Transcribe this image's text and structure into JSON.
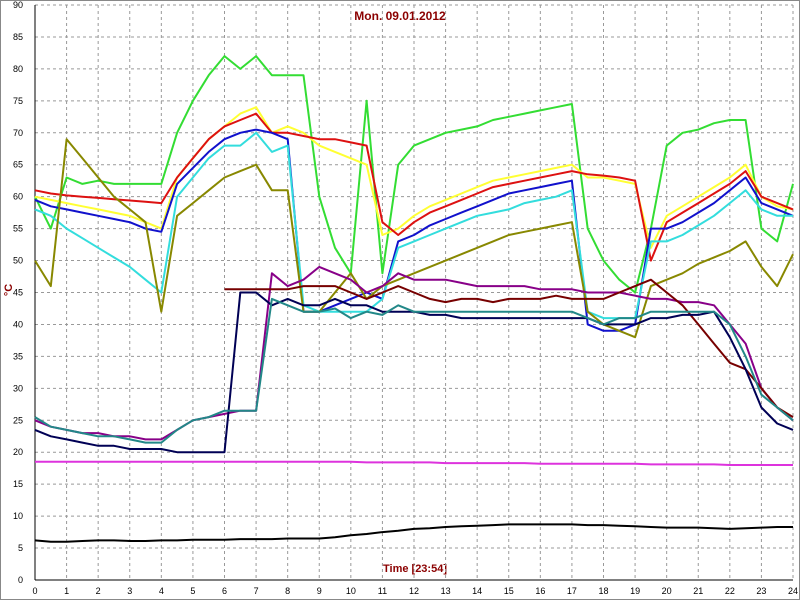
{
  "chart_data": {
    "type": "line",
    "title": "Mon. 09.01.2012",
    "x_label": "Time [23:54]",
    "y_label": "°C",
    "x": [
      0,
      0.5,
      1,
      1.5,
      2,
      2.5,
      3,
      3.5,
      4,
      4.5,
      5,
      5.5,
      6,
      6.5,
      7,
      7.5,
      8,
      8.5,
      9,
      9.5,
      10,
      10.5,
      11,
      11.5,
      12,
      12.5,
      13,
      13.5,
      14,
      14.5,
      15,
      15.5,
      16,
      16.5,
      17,
      17.5,
      18,
      18.5,
      19,
      19.5,
      20,
      20.5,
      21,
      21.5,
      22,
      22.5,
      23,
      23.5,
      24
    ],
    "xlim": [
      0,
      24
    ],
    "xticks": [
      0,
      1,
      2,
      3,
      4,
      5,
      6,
      7,
      8,
      9,
      10,
      11,
      12,
      13,
      14,
      15,
      16,
      17,
      18,
      19,
      20,
      21,
      22,
      23,
      24
    ],
    "ylim": [
      0,
      90
    ],
    "yticks": [
      0,
      5,
      10,
      15,
      20,
      25,
      30,
      35,
      40,
      45,
      50,
      55,
      60,
      65,
      70,
      75,
      80,
      85,
      90
    ],
    "grid": true,
    "series": [
      {
        "color": "#33dd33",
        "values": [
          60,
          55,
          63,
          62,
          62.5,
          62,
          62,
          62,
          62,
          70,
          75,
          79,
          82,
          80,
          82,
          79,
          79,
          79,
          60,
          52,
          48,
          75,
          48,
          65,
          68,
          69,
          70,
          70.5,
          71,
          72,
          72.5,
          73,
          73.5,
          74,
          74.5,
          55,
          50,
          47,
          45,
          55,
          68,
          70,
          70.5,
          71.5,
          72,
          72,
          55,
          53,
          62
        ]
      },
      {
        "color": "#ffff33",
        "values": [
          60,
          59.5,
          59,
          58.5,
          58,
          57.5,
          57,
          56,
          55,
          63,
          66,
          69,
          71,
          73,
          74,
          70,
          71,
          70,
          68,
          67,
          66,
          65,
          54,
          55,
          57,
          58.5,
          59.5,
          60.5,
          61.5,
          62.5,
          63,
          63.5,
          64,
          64.5,
          65,
          63,
          63,
          62.5,
          62,
          52,
          57,
          58.5,
          60,
          61.5,
          63,
          65,
          60,
          58.5,
          58
        ]
      },
      {
        "color": "#dd1111",
        "values": [
          61,
          60.5,
          60.2,
          60,
          59.8,
          59.6,
          59.4,
          59.2,
          59,
          63,
          66,
          69,
          71,
          72,
          73,
          70,
          70,
          69.5,
          69,
          69,
          68.5,
          68,
          56,
          54,
          56,
          57.5,
          58.5,
          59.5,
          60.5,
          61.5,
          62,
          62.5,
          63,
          63.5,
          64,
          63.5,
          63.3,
          63,
          62.5,
          50,
          56,
          57.5,
          59,
          60.5,
          62,
          64,
          60,
          59,
          58
        ]
      },
      {
        "color": "#1111cc",
        "values": [
          59.5,
          58.5,
          58,
          57.5,
          57,
          56.5,
          56,
          55,
          54.5,
          62,
          64.5,
          67,
          69,
          70,
          70.5,
          70,
          69,
          42,
          42,
          43,
          44,
          45,
          44,
          53,
          54,
          55.5,
          56.5,
          57.5,
          58.5,
          59.5,
          60.5,
          61,
          61.5,
          62,
          62.5,
          40,
          39,
          39,
          40,
          55,
          55,
          56,
          57.5,
          59,
          61,
          63,
          59,
          58,
          57
        ]
      },
      {
        "color": "#33dddd",
        "values": [
          58,
          57,
          55,
          53.5,
          52,
          50.5,
          49,
          47,
          45,
          60,
          63,
          66,
          68,
          68,
          70,
          67,
          68,
          43,
          42,
          42,
          42,
          42,
          44,
          52,
          53,
          54,
          55,
          56,
          57,
          57.5,
          58,
          59,
          59.5,
          60,
          61,
          42,
          41,
          41,
          41,
          53,
          53,
          54,
          55.5,
          57,
          59,
          61,
          58,
          57,
          57
        ]
      },
      {
        "color": "#888800",
        "values": [
          50,
          46,
          69,
          66,
          63,
          60,
          58,
          56,
          42,
          57,
          59,
          61,
          63,
          64,
          65,
          61,
          61,
          42,
          42,
          45,
          48,
          44,
          46,
          47,
          48,
          49,
          50,
          51,
          52,
          53,
          54,
          54.5,
          55,
          55.5,
          56,
          42,
          40,
          39,
          38,
          46,
          47,
          48,
          49.5,
          50.5,
          51.5,
          53,
          49,
          46,
          51
        ]
      },
      {
        "color": "#880088",
        "values": [
          25,
          24,
          23.5,
          23,
          23,
          22.5,
          22.5,
          22,
          22,
          23.5,
          25,
          25.5,
          26,
          26.5,
          26.5,
          48,
          46,
          47,
          49,
          48,
          47,
          45,
          46,
          48,
          47,
          47,
          47,
          46.5,
          46,
          46,
          46,
          46,
          45.5,
          45.5,
          45.5,
          45,
          45,
          45,
          44.5,
          44,
          44,
          43.5,
          43.5,
          43,
          40,
          37,
          30,
          27,
          25
        ]
      },
      {
        "color": "#770000",
        "values": [
          null,
          null,
          null,
          null,
          null,
          null,
          null,
          null,
          null,
          null,
          null,
          null,
          45.5,
          45.5,
          45.5,
          45.5,
          45.5,
          46,
          46,
          46,
          45,
          44,
          45,
          46,
          45,
          44,
          43.5,
          44,
          44,
          43.5,
          44,
          44,
          44,
          44.5,
          44,
          44,
          44,
          45,
          46,
          47,
          45,
          43,
          40,
          37,
          34,
          33,
          30,
          27,
          25.5
        ]
      },
      {
        "color": "#000055",
        "values": [
          23.5,
          22.5,
          22,
          21.5,
          21,
          21,
          20.5,
          20.5,
          20.5,
          20,
          20,
          20,
          20,
          45,
          45,
          43,
          44,
          43,
          43,
          44,
          43,
          43,
          42,
          42,
          42,
          41.5,
          41.5,
          41,
          41,
          41,
          41,
          41,
          41,
          41,
          41,
          41,
          40,
          40,
          40,
          41,
          41,
          41.5,
          41.5,
          42,
          38,
          33,
          27,
          24.5,
          23.5
        ]
      },
      {
        "color": "#228888",
        "values": [
          25.5,
          24,
          23.5,
          23,
          22.5,
          22.5,
          22,
          21.5,
          21.5,
          23.5,
          25,
          25.5,
          26.5,
          26.5,
          26.5,
          44,
          43,
          42,
          42,
          42.5,
          41,
          42,
          41.5,
          43,
          42,
          42,
          42,
          42,
          42,
          42,
          42,
          42,
          42,
          42,
          42,
          41,
          40,
          41,
          41,
          42,
          42,
          42,
          42,
          42,
          40,
          35,
          29,
          27,
          25
        ]
      },
      {
        "color": "#dd33dd",
        "values": [
          18.5,
          18.5,
          18.5,
          18.5,
          18.5,
          18.5,
          18.5,
          18.5,
          18.5,
          18.5,
          18.5,
          18.5,
          18.5,
          18.5,
          18.5,
          18.5,
          18.5,
          18.5,
          18.5,
          18.5,
          18.5,
          18.4,
          18.4,
          18.4,
          18.4,
          18.4,
          18.3,
          18.3,
          18.3,
          18.3,
          18.3,
          18.3,
          18.2,
          18.2,
          18.2,
          18.2,
          18.2,
          18.2,
          18.2,
          18.1,
          18.1,
          18.1,
          18.1,
          18.1,
          18,
          18,
          18,
          18,
          18
        ]
      },
      {
        "color": "#000000",
        "values": [
          6.2,
          6,
          6,
          6.1,
          6.2,
          6.2,
          6.1,
          6.1,
          6.2,
          6.2,
          6.3,
          6.3,
          6.3,
          6.4,
          6.4,
          6.4,
          6.5,
          6.5,
          6.5,
          6.7,
          7,
          7.2,
          7.5,
          7.7,
          8,
          8.1,
          8.3,
          8.4,
          8.5,
          8.6,
          8.7,
          8.7,
          8.7,
          8.7,
          8.7,
          8.6,
          8.6,
          8.5,
          8.4,
          8.3,
          8.2,
          8.2,
          8.2,
          8.1,
          8,
          8.1,
          8.2,
          8.3,
          8.3
        ]
      }
    ]
  }
}
